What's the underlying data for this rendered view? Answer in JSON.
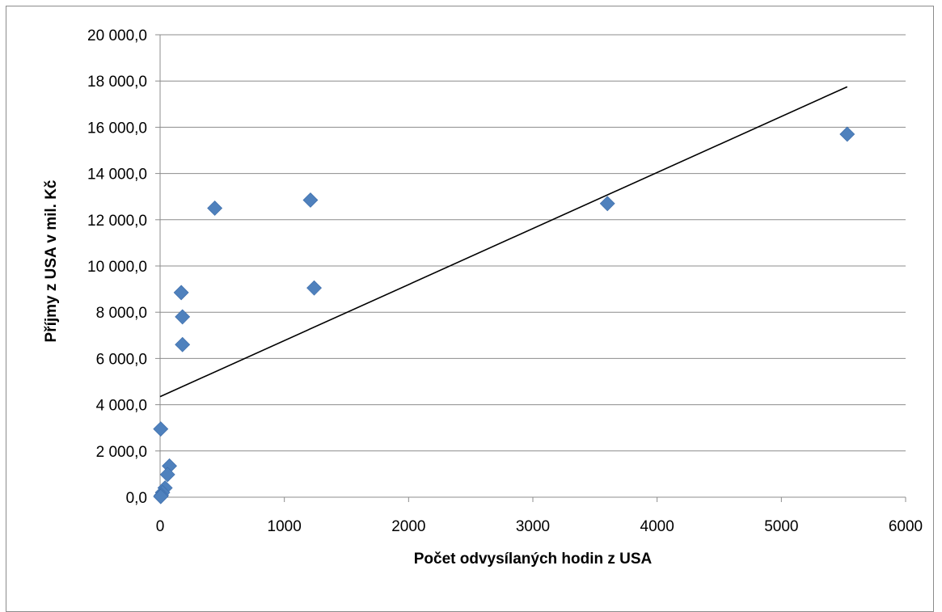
{
  "chart_data": {
    "type": "scatter",
    "title": "",
    "xlabel": "Počet odvysílaných hodin z USA",
    "ylabel": "Příjmy z USA v mil. Kč",
    "xlim": [
      0,
      6000
    ],
    "ylim": [
      0,
      20000
    ],
    "x_ticks": [
      0,
      1000,
      2000,
      3000,
      4000,
      5000,
      6000
    ],
    "x_tick_labels": [
      "0",
      "1000",
      "2000",
      "3000",
      "4000",
      "5000",
      "6000"
    ],
    "y_ticks": [
      0,
      2000,
      4000,
      6000,
      8000,
      10000,
      12000,
      14000,
      16000,
      18000,
      20000
    ],
    "y_tick_labels": [
      "0,0",
      "2 000,0",
      "4 000,0",
      "6 000,0",
      "8 000,0",
      "10 000,0",
      "12 000,0",
      "14 000,0",
      "16 000,0",
      "18 000,0",
      "20 000,0"
    ],
    "grid": "horizontal",
    "legend": "none",
    "marker": "diamond",
    "marker_color": "#4f81bd",
    "series": [
      {
        "points": [
          {
            "x": 5530,
            "y": 15700
          },
          {
            "x": 3600,
            "y": 12700
          },
          {
            "x": 1210,
            "y": 12850
          },
          {
            "x": 1240,
            "y": 9050
          },
          {
            "x": 440,
            "y": 12500
          },
          {
            "x": 170,
            "y": 8850
          },
          {
            "x": 180,
            "y": 7800
          },
          {
            "x": 180,
            "y": 6600
          },
          {
            "x": 5,
            "y": 2950
          },
          {
            "x": 75,
            "y": 1350
          },
          {
            "x": 60,
            "y": 980
          },
          {
            "x": 40,
            "y": 400
          },
          {
            "x": 20,
            "y": 200
          },
          {
            "x": 10,
            "y": 80
          },
          {
            "x": 5,
            "y": 30
          }
        ]
      }
    ],
    "trendline": {
      "type": "linear",
      "color": "#000000",
      "x": [
        0,
        5530
      ],
      "y": [
        4350,
        17750
      ]
    }
  }
}
